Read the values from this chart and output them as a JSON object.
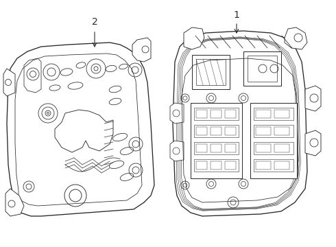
{
  "background_color": "#ffffff",
  "line_color": "#2a2a2a",
  "line_width": 0.8,
  "label1": "1",
  "label2": "2",
  "font_size": 9,
  "fig_width": 4.9,
  "fig_height": 3.6,
  "dpi": 100
}
